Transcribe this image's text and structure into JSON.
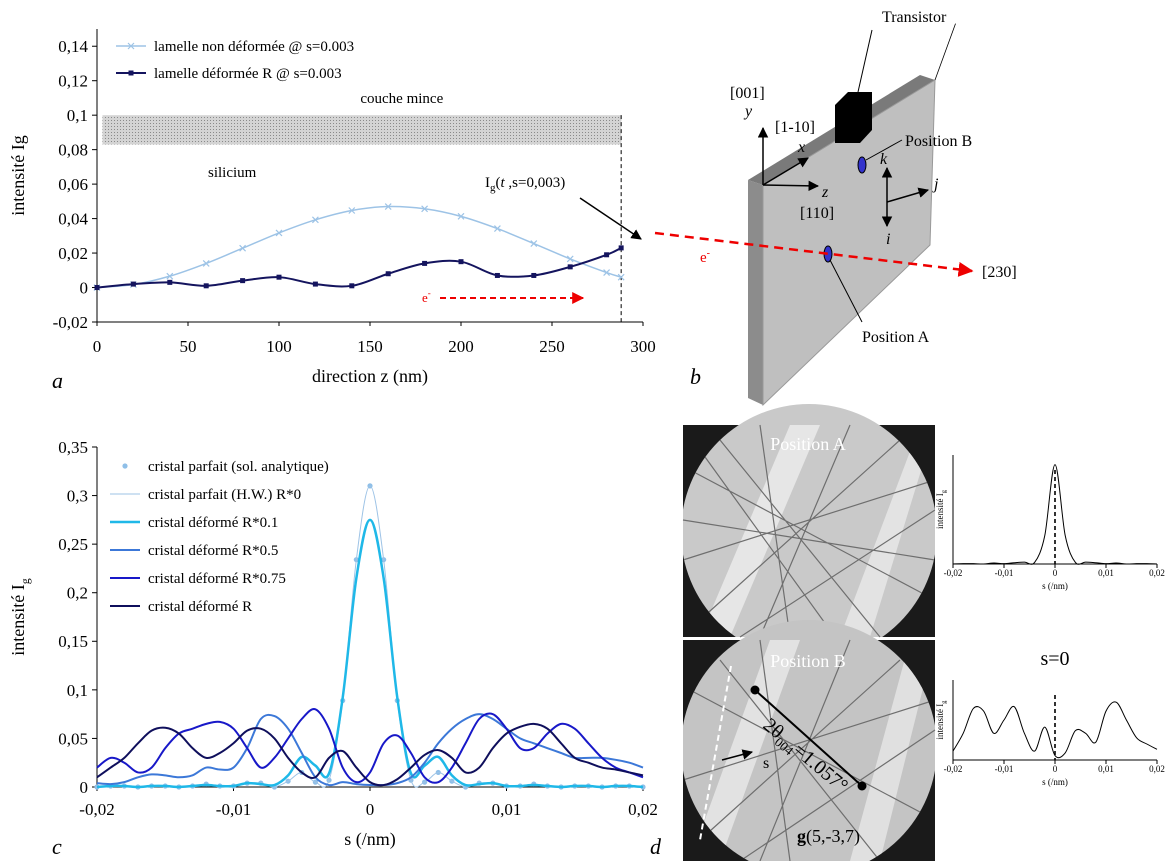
{
  "chart_data": [
    {
      "type": "line",
      "panel_label": "a",
      "xlabel": "direction z  (nm)",
      "ylabel": "intensité Ig",
      "x": [
        0,
        20,
        40,
        60,
        80,
        100,
        120,
        140,
        160,
        180,
        200,
        220,
        240,
        260,
        280,
        288
      ],
      "series": [
        {
          "name": "lamelle non déformée @ s=0.003",
          "color": "#9dc3e6",
          "marker": "x",
          "line_width": 1.5,
          "values": [
            0,
            0.0017,
            0.0066,
            0.014,
            0.0228,
            0.0317,
            0.0393,
            0.0447,
            0.047,
            0.0457,
            0.0413,
            0.0342,
            0.0255,
            0.0166,
            0.0087,
            0.006
          ]
        },
        {
          "name": "lamelle déformée R @ s=0.003",
          "color": "#14145e",
          "marker": "square",
          "line_width": 2,
          "values": [
            0,
            0.002,
            0.003,
            0.001,
            0.004,
            0.006,
            0.002,
            0.001,
            0.008,
            0.014,
            0.015,
            0.007,
            0.007,
            0.012,
            0.019,
            0.023
          ]
        }
      ],
      "xlim": [
        0,
        300
      ],
      "xticks": [
        0,
        50,
        100,
        150,
        200,
        250,
        300
      ],
      "ylim": [
        -0.02,
        0.15
      ],
      "yticks": [
        {
          "value": -0.02,
          "label": "-0,02"
        },
        0,
        {
          "value": 0.02,
          "label": "0,02"
        },
        {
          "value": 0.04,
          "label": "0,04"
        },
        {
          "value": 0.06,
          "label": "0,06"
        },
        {
          "value": 0.08,
          "label": "0,08"
        },
        {
          "value": 0.1,
          "label": "0,1"
        },
        {
          "value": 0.12,
          "label": "0,12"
        },
        {
          "value": 0.14,
          "label": "0,14"
        }
      ],
      "legend": "upper left",
      "shaded_region": {
        "label": "couche mince",
        "x": [
          3,
          288
        ],
        "y": [
          0.083,
          0.1
        ]
      },
      "vline": 288,
      "annotations": {
        "silicium": "silicium",
        "endpoint": [
          "I",
          "g",
          "(",
          "t",
          " ,s=0,003)"
        ],
        "beam": [
          "e",
          "-"
        ]
      }
    },
    {
      "type": "line",
      "panel_label": "c",
      "xlabel": "s (/nm)",
      "ylabel": "intensité I",
      "ylabel_sub": "g",
      "x": [
        -0.02,
        -0.019,
        -0.018,
        -0.017,
        -0.016,
        -0.015,
        -0.014,
        -0.013,
        -0.012,
        -0.011,
        -0.01,
        -0.009,
        -0.008,
        -0.007,
        -0.006,
        -0.005,
        -0.004,
        -0.003,
        -0.002,
        -0.001,
        0,
        0.001,
        0.002,
        0.003,
        0.004,
        0.005,
        0.006,
        0.007,
        0.008,
        0.009,
        0.01,
        0.011,
        0.012,
        0.013,
        0.014,
        0.015,
        0.016,
        0.017,
        0.018,
        0.019,
        0.02
      ],
      "series": [
        {
          "name": "cristal parfait (sol. analytique)",
          "color": "#8fbfe8",
          "marker": "circle",
          "line": false,
          "values": [
            0,
            0.001,
            0.001,
            0,
            0.001,
            0.001,
            0,
            0.001,
            0.003,
            0.001,
            0.001,
            0.004,
            0.004,
            0,
            0.006,
            0.015,
            0.005,
            0.007,
            0.089,
            0.234,
            0.31,
            0.234,
            0.089,
            0.007,
            0.005,
            0.015,
            0.006,
            0,
            0.004,
            0.004,
            0.001,
            0.001,
            0.003,
            0.001,
            0,
            0.001,
            0.001,
            0,
            0.001,
            0.001,
            0
          ]
        },
        {
          "name": "cristal parfait (H.W.) R*0",
          "color": "#9dc3e6",
          "line_width": 1,
          "values": [
            0,
            0.001,
            0.001,
            0,
            0.001,
            0.001,
            0,
            0.001,
            0.003,
            0.001,
            0.001,
            0.004,
            0.004,
            0,
            0.006,
            0.015,
            0.005,
            0.007,
            0.089,
            0.234,
            0.31,
            0.234,
            0.089,
            0.007,
            0.005,
            0.015,
            0.006,
            0,
            0.004,
            0.004,
            0.001,
            0.001,
            0.003,
            0.001,
            0,
            0.001,
            0.001,
            0,
            0.001,
            0.001,
            0
          ]
        },
        {
          "name": "cristal déformé R*0.1",
          "color": "#1fb8e8",
          "line_width": 2.5,
          "values": [
            0,
            0.001,
            0.001,
            0,
            0.001,
            0.001,
            0,
            0.001,
            0.002,
            0.001,
            0.001,
            0.004,
            0.003,
            0.002,
            0.012,
            0.031,
            0.022,
            0.014,
            0.092,
            0.215,
            0.275,
            0.215,
            0.092,
            0.014,
            0.022,
            0.031,
            0.012,
            0.002,
            0.003,
            0.004,
            0.001,
            0.001,
            0.002,
            0.001,
            0,
            0.001,
            0.001,
            0,
            0.001,
            0.001,
            0
          ]
        },
        {
          "name": "cristal déformé R*0.5",
          "color": "#3c78d8",
          "line_width": 2,
          "values": [
            0.004,
            0.003,
            0.005,
            0.01,
            0.013,
            0.012,
            0.01,
            0.012,
            0.02,
            0.018,
            0.02,
            0.04,
            0.07,
            0.073,
            0.06,
            0.035,
            0.01,
            0.002,
            0.005,
            0.003,
            0.002,
            0.002,
            0.004,
            0.01,
            0.025,
            0.045,
            0.06,
            0.07,
            0.075,
            0.07,
            0.06,
            0.05,
            0.045,
            0.04,
            0.035,
            0.03,
            0.03,
            0.03,
            0.028,
            0.025,
            0.02
          ]
        },
        {
          "name": "cristal déformé R*0.75",
          "color": "#1818c8",
          "line_width": 2,
          "values": [
            0.02,
            0.03,
            0.025,
            0.015,
            0.02,
            0.04,
            0.055,
            0.06,
            0.065,
            0.067,
            0.06,
            0.04,
            0.02,
            0.03,
            0.05,
            0.07,
            0.08,
            0.06,
            0.02,
            0.005,
            0.015,
            0.045,
            0.053,
            0.035,
            0.01,
            0.005,
            0.02,
            0.045,
            0.07,
            0.075,
            0.06,
            0.04,
            0.04,
            0.055,
            0.065,
            0.06,
            0.045,
            0.03,
            0.02,
            0.015,
            0.01
          ]
        },
        {
          "name": "cristal déformé R",
          "color": "#0f0f5c",
          "line_width": 2,
          "values": [
            0.01,
            0.02,
            0.03,
            0.045,
            0.058,
            0.061,
            0.055,
            0.04,
            0.03,
            0.035,
            0.045,
            0.058,
            0.06,
            0.05,
            0.03,
            0.015,
            0.01,
            0.03,
            0.037,
            0.02,
            0.005,
            0.002,
            0.008,
            0.02,
            0.033,
            0.038,
            0.03,
            0.015,
            0.02,
            0.04,
            0.055,
            0.062,
            0.065,
            0.06,
            0.045,
            0.03,
            0.025,
            0.02,
            0.018,
            0.015,
            0.012
          ]
        }
      ],
      "xlim": [
        -0.02,
        0.02
      ],
      "xticks": [
        {
          "value": -0.02,
          "label": "-0,02"
        },
        {
          "value": -0.01,
          "label": "-0,01"
        },
        0,
        {
          "value": 0.01,
          "label": "0,01"
        },
        {
          "value": 0.02,
          "label": "0,02"
        }
      ],
      "ylim": [
        0,
        0.35
      ],
      "yticks": [
        0,
        {
          "value": 0.05,
          "label": "0,05"
        },
        {
          "value": 0.1,
          "label": "0,1"
        },
        {
          "value": 0.15,
          "label": "0,15"
        },
        {
          "value": 0.2,
          "label": "0,2"
        },
        {
          "value": 0.25,
          "label": "0,25"
        },
        {
          "value": 0.3,
          "label": "0,3"
        },
        {
          "value": 0.35,
          "label": "0,35"
        }
      ],
      "legend": "upper left"
    },
    {
      "type": "line",
      "xlabel": "s (/nm)",
      "ylabel": "intensité I",
      "ylabel_sub": "g",
      "x": [
        -0.02,
        -0.018,
        -0.016,
        -0.014,
        -0.012,
        -0.01,
        -0.008,
        -0.006,
        -0.004,
        -0.002,
        0,
        0.002,
        0.004,
        0.006,
        0.008,
        0.01,
        0.012,
        0.014,
        0.016,
        0.018,
        0.02
      ],
      "series": [
        {
          "color": "#000000",
          "line_width": 1,
          "values": [
            0,
            0.001,
            0.001,
            0,
            0.003,
            0.001,
            0.004,
            0.006,
            0.005,
            0.089,
            0.31,
            0.089,
            0.005,
            0.006,
            0.004,
            0.001,
            0.003,
            0,
            0.001,
            0.001,
            0
          ]
        }
      ],
      "xlim": [
        -0.02,
        0.02
      ],
      "xticks": [
        {
          "value": -0.02,
          "label": "-0,02"
        },
        {
          "value": -0.01,
          "label": "-0,01"
        },
        0,
        {
          "value": 0.01,
          "label": "0,01"
        },
        {
          "value": 0.02,
          "label": "0,02"
        }
      ],
      "ylim": [
        0,
        0.34
      ],
      "vline": 0
    },
    {
      "type": "line",
      "title": "s=0",
      "xlabel": "s (/nm)",
      "ylabel": "intensité I",
      "ylabel_sub": "g",
      "x": [
        -0.02,
        -0.018,
        -0.016,
        -0.014,
        -0.012,
        -0.01,
        -0.008,
        -0.006,
        -0.004,
        -0.002,
        0,
        0.002,
        0.004,
        0.006,
        0.008,
        0.01,
        0.012,
        0.014,
        0.016,
        0.018,
        0.02
      ],
      "series": [
        {
          "color": "#000000",
          "line_width": 1,
          "values": [
            0.01,
            0.03,
            0.058,
            0.055,
            0.03,
            0.045,
            0.06,
            0.03,
            0.01,
            0.037,
            0.005,
            0.008,
            0.033,
            0.03,
            0.02,
            0.055,
            0.065,
            0.045,
            0.025,
            0.018,
            0.012
          ]
        }
      ],
      "xlim": [
        -0.02,
        0.02
      ],
      "xticks": [
        {
          "value": -0.02,
          "label": "-0,02"
        },
        {
          "value": -0.01,
          "label": "-0,01"
        },
        0,
        {
          "value": 0.01,
          "label": "0,01"
        },
        {
          "value": 0.02,
          "label": "0,02"
        }
      ],
      "ylim": [
        0,
        0.09
      ],
      "vline": 0
    }
  ],
  "diagram": {
    "panel_label": "b",
    "labels": {
      "transistor": "Transistor",
      "dir_001": "[001]",
      "y": "y",
      "dir_1m10": "[1-10]",
      "x": "x",
      "z": "z",
      "dir_110": "[110]",
      "k": "k",
      "j": "j",
      "i": "i",
      "position_b": "Position B",
      "position_a": "Position A",
      "beam": [
        "e",
        "-"
      ],
      "dir_230": "[230]"
    }
  },
  "micrographs": {
    "panel_label": "d",
    "position_a": "Position A",
    "position_b": "Position B",
    "angle": [
      "2θ",
      "004",
      "=1.057°"
    ],
    "s": "s",
    "g": [
      "g",
      "(5,-3,7)"
    ]
  }
}
